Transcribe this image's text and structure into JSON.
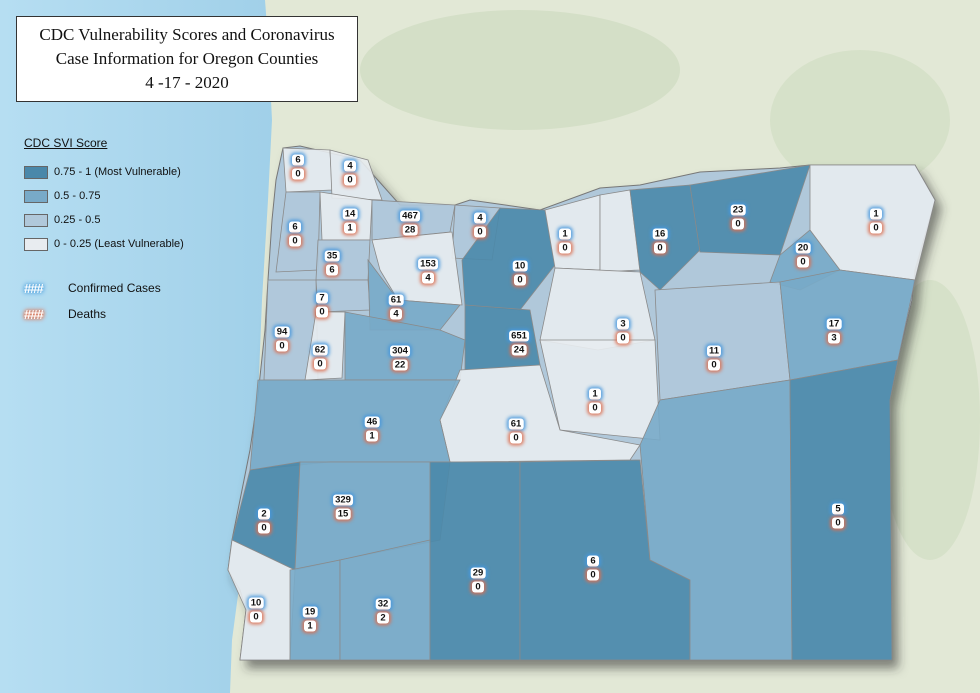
{
  "title": {
    "line1": "CDC Vulnerability Scores and Coronavirus",
    "line2": "Case Information for Oregon Counties",
    "line3": "4 -17 - 2020"
  },
  "legend": {
    "heading": "CDC SVI Score",
    "classes": [
      {
        "label": "0.75 - 1  (Most Vulnerable)",
        "color": "#4a88aa"
      },
      {
        "label": "0.5 - 0.75",
        "color": "#78aac8"
      },
      {
        "label": "0.25 - 0.5",
        "color": "#b0c8da"
      },
      {
        "label": "0 - 0.25  (Least Vulnerable)",
        "color": "#e8ecf0"
      }
    ],
    "symbol": "###",
    "cases_label": "Confirmed Cases",
    "deaths_label": "Deaths"
  },
  "counties": [
    {
      "cases": "6",
      "deaths": "0"
    },
    {
      "cases": "4",
      "deaths": "0"
    },
    {
      "cases": "14",
      "deaths": "1"
    },
    {
      "cases": "467",
      "deaths": "28"
    },
    {
      "cases": "4",
      "deaths": "0"
    },
    {
      "cases": "1",
      "deaths": "0"
    },
    {
      "cases": "16",
      "deaths": "0"
    },
    {
      "cases": "23",
      "deaths": "0"
    },
    {
      "cases": "1",
      "deaths": "0"
    },
    {
      "cases": "6",
      "deaths": "0"
    },
    {
      "cases": "35",
      "deaths": "6"
    },
    {
      "cases": "153",
      "deaths": "4"
    },
    {
      "cases": "10",
      "deaths": "0"
    },
    {
      "cases": "20",
      "deaths": "0"
    },
    {
      "cases": "7",
      "deaths": "0"
    },
    {
      "cases": "61",
      "deaths": "4"
    },
    {
      "cases": "94",
      "deaths": "0"
    },
    {
      "cases": "62",
      "deaths": "0"
    },
    {
      "cases": "304",
      "deaths": "22"
    },
    {
      "cases": "651",
      "deaths": "24"
    },
    {
      "cases": "3",
      "deaths": "0"
    },
    {
      "cases": "11",
      "deaths": "0"
    },
    {
      "cases": "17",
      "deaths": "3"
    },
    {
      "cases": "1",
      "deaths": "0"
    },
    {
      "cases": "46",
      "deaths": "1"
    },
    {
      "cases": "61",
      "deaths": "0"
    },
    {
      "cases": "2",
      "deaths": "0"
    },
    {
      "cases": "329",
      "deaths": "15"
    },
    {
      "cases": "5",
      "deaths": "0"
    },
    {
      "cases": "6",
      "deaths": "0"
    },
    {
      "cases": "29",
      "deaths": "0"
    },
    {
      "cases": "10",
      "deaths": "0"
    },
    {
      "cases": "19",
      "deaths": "1"
    },
    {
      "cases": "32",
      "deaths": "2"
    }
  ],
  "colors": {
    "ocean": "#a9d6ee",
    "land": "#e4e8da",
    "case_glow": "#4696dc",
    "death_glow": "#dc6e50"
  }
}
